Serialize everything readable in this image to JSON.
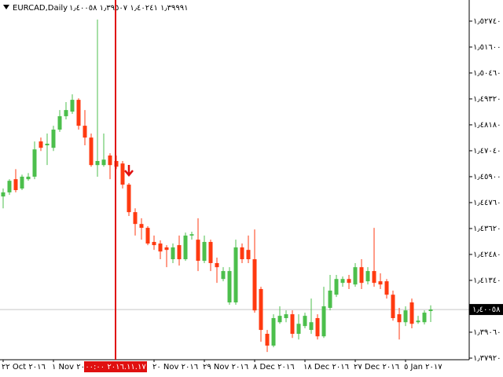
{
  "chart_data": {
    "type": "candlestick",
    "title": "EURCAD,Daily",
    "quote": "١٫٣٩٩٩١ ١٫٤٠٢٤١ ١٫٣٩٥٠٧ ١٫٤٠٠٥٨",
    "up_color": "#4cbf4c",
    "down_color": "#ff3a10",
    "categories": [
      "٢٢ Oct ٢٠١٦",
      null,
      null,
      null,
      null,
      null,
      null,
      null,
      "١ Nov ٢٠١٦",
      null,
      null,
      null,
      null,
      null,
      null,
      null,
      null,
      null,
      "٢٠١٦.١١.١٧ ٠٠:٠٠",
      null,
      null,
      null,
      null,
      null,
      "٢٠ Nov ٢٠١٦",
      null,
      null,
      null,
      null,
      null,
      null,
      null,
      "٢٩ Nov ٢٠١٦",
      null,
      null,
      null,
      null,
      null,
      null,
      null,
      "٨ Dec ٢٠١٦",
      null,
      null,
      null,
      null,
      null,
      null,
      null,
      "١٨ Dec ٢٠١٦",
      null,
      null,
      null,
      null,
      null,
      null,
      null,
      "٢٧ Dec ٢٠١٦",
      null,
      null,
      null,
      null,
      null,
      null,
      null,
      "٥ Jan ٢٠١٧",
      null,
      null,
      null,
      null
    ],
    "open": [
      1.4503,
      1.4521,
      1.4579,
      1.4538,
      1.4579,
      1.459,
      1.4745,
      1.4728,
      1.4717,
      1.4797,
      1.4856,
      1.4876,
      1.4928,
      1.4814,
      1.4762,
      1.4641,
      1.4641,
      1.4683,
      1.4659,
      1.4648,
      1.4555,
      1.4434,
      1.4382,
      1.4365,
      1.4303,
      1.4296,
      1.4279,
      1.4227,
      1.4289,
      1.4227,
      1.4331,
      1.4313,
      1.422,
      1.4303,
      1.421,
      1.414,
      1.4037,
      1.4037,
      1.4279,
      1.4268,
      1.4227,
      1.4096,
      1.3899,
      1.3847,
      1.395,
      1.3968,
      1.3985,
      1.3899,
      1.3933,
      1.3916,
      1.3968,
      1.3888,
      1.4013,
      1.4071,
      1.4123,
      1.414,
      1.4116,
      1.4192,
      1.413,
      1.4175,
      1.413,
      1.413,
      1.4071,
      1.3985,
      1.395,
      1.4037,
      1.395,
      1.395,
      1.39991
    ],
    "high": [
      1.4538,
      1.4579,
      1.4623,
      1.4599,
      1.4606,
      1.4745,
      1.4762,
      1.478,
      1.4814,
      1.4883,
      1.4918,
      1.4952,
      1.4935,
      1.4883,
      1.478,
      1.5281,
      1.478,
      1.4693,
      1.4683,
      1.4659,
      1.4562,
      1.4451,
      1.4407,
      1.4372,
      1.4331,
      1.431,
      1.4289,
      1.4296,
      1.4331,
      1.4344,
      1.4348,
      1.4407,
      1.4331,
      1.4313,
      1.4234,
      1.4192,
      1.4192,
      1.4313,
      1.4296,
      1.4331,
      1.4358,
      1.4106,
      1.3916,
      1.3985,
      1.402,
      1.4002,
      1.4002,
      1.3985,
      1.3992,
      1.4054,
      1.3985,
      1.4106,
      1.4158,
      1.4158,
      1.4151,
      1.4158,
      1.421,
      1.4227,
      1.4192,
      1.4365,
      1.4165,
      1.414,
      1.4089,
      1.4013,
      1.402,
      1.4054,
      1.3978,
      1.4002,
      1.40241
    ],
    "low": [
      1.4451,
      1.451,
      1.4521,
      1.4531,
      1.4572,
      1.4579,
      1.4703,
      1.4641,
      1.4703,
      1.4787,
      1.4842,
      1.4866,
      1.4797,
      1.4728,
      1.4634,
      1.459,
      1.4634,
      1.4579,
      1.4623,
      1.4538,
      1.4417,
      1.4331,
      1.4313,
      1.4289,
      1.4268,
      1.4227,
      1.4192,
      1.421,
      1.4199,
      1.422,
      1.4313,
      1.4175,
      1.421,
      1.4175,
      1.4123,
      1.413,
      1.4027,
      1.4027,
      1.421,
      1.421,
      1.3992,
      1.3864,
      1.3819,
      1.384,
      1.3943,
      1.395,
      1.3881,
      1.3874,
      1.3923,
      1.3899,
      1.3874,
      1.3881,
      1.4002,
      1.4061,
      1.4106,
      1.4096,
      1.4106,
      1.4096,
      1.4116,
      1.4106,
      1.4096,
      1.4054,
      1.3957,
      1.3874,
      1.3933,
      1.3923,
      1.3943,
      1.394,
      1.39507
    ],
    "close": [
      1.4521,
      1.4572,
      1.4531,
      1.459,
      1.459,
      1.471,
      1.4717,
      1.4735,
      1.4797,
      1.4856,
      1.4883,
      1.4928,
      1.4814,
      1.4762,
      1.4641,
      1.4659,
      1.4665,
      1.4641,
      1.4634,
      1.4555,
      1.4434,
      1.4382,
      1.4365,
      1.4296,
      1.4289,
      1.4261,
      1.4268,
      1.4279,
      1.4227,
      1.4331,
      1.4337,
      1.422,
      1.4303,
      1.421,
      1.4192,
      1.4175,
      1.4175,
      1.4279,
      1.4227,
      1.4227,
      1.4002,
      1.3916,
      1.3847,
      1.3968,
      1.3978,
      1.3985,
      1.3899,
      1.3943,
      1.3978,
      1.395,
      1.3888,
      1.402,
      1.4089,
      1.414,
      1.414,
      1.4123,
      1.4192,
      1.4123,
      1.4175,
      1.4123,
      1.4116,
      1.4071,
      1.3968,
      1.395,
      1.4002,
      1.3943,
      1.3957,
      1.3992,
      1.40058
    ],
    "ylim": [
      1.3785,
      1.5367
    ],
    "yticks": [
      {
        "value": 1.5274,
        "label": "١٫٥٢٧٤٠"
      },
      {
        "value": 1.516,
        "label": "١٫٥١٦٠٠"
      },
      {
        "value": 1.5046,
        "label": "١٫٥٠٤٦٠"
      },
      {
        "value": 1.4932,
        "label": "١٫٤٩٣٢٠"
      },
      {
        "value": 1.4818,
        "label": "١٫٤٨١٨٠"
      },
      {
        "value": 1.4704,
        "label": "١٫٤٧٠٤٠"
      },
      {
        "value": 1.459,
        "label": "١٫٤٥٩٠٠"
      },
      {
        "value": 1.4476,
        "label": "١٫٤٤٧٦٠"
      },
      {
        "value": 1.4362,
        "label": "١٫٤٣٦٢٠"
      },
      {
        "value": 1.4248,
        "label": "١٫٤٢٤٨٠"
      },
      {
        "value": 1.4134,
        "label": "١٫٤١٣٤٠"
      },
      {
        "value": 1.3906,
        "label": "١٫٣٩٠٦٠"
      },
      {
        "value": 1.3792,
        "label": "١٫٣٧٩٢٠"
      }
    ],
    "current_price": {
      "value": 1.40058,
      "label": "١٫٤٠٠٥٨"
    }
  }
}
